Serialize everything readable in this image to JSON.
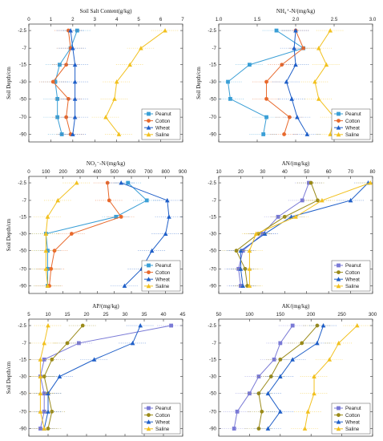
{
  "colors": {
    "Peanut": "#3a9fd6",
    "Cotton": "#e8692c",
    "Wheat": "#1f5fc8",
    "Saline": "#f2c11f",
    "Peanut2": "#7a7ad6",
    "Cotton2": "#9a8a18"
  },
  "chart_data": [
    {
      "type": "line",
      "panel": "a",
      "title": "Soil Salt Content(g/kg)",
      "ylabel": "Soil Depth/cm",
      "xlim": [
        0,
        7
      ],
      "xticks": [
        "0",
        "1",
        "2",
        "3",
        "4",
        "5",
        "6",
        "7"
      ],
      "categories": [
        "2.5",
        "7",
        "15",
        "30",
        "50",
        "70",
        "90"
      ],
      "legend": "bottom-right",
      "series": [
        {
          "name": "Peanut",
          "values": [
            2.2,
            1.9,
            1.4,
            1.2,
            1.3,
            1.3,
            1.5
          ]
        },
        {
          "name": "Cotton",
          "values": [
            1.8,
            1.9,
            1.7,
            1.1,
            1.8,
            1.7,
            1.9
          ]
        },
        {
          "name": "Wheat",
          "values": [
            1.9,
            2.0,
            2.1,
            2.1,
            2.1,
            2.1,
            2.0
          ]
        },
        {
          "name": "Saline",
          "values": [
            6.2,
            5.1,
            4.6,
            4.0,
            3.9,
            3.5,
            4.1
          ]
        }
      ]
    },
    {
      "type": "line",
      "panel": "b",
      "title": "NH₄⁺-N/(mg/kg)",
      "ylabel": "Soil Depth/cm",
      "xlim": [
        1,
        3
      ],
      "xticks": [
        "1.0",
        "1.5",
        "2.0",
        "2.5",
        "3.0"
      ],
      "categories": [
        "2.5",
        "7",
        "15",
        "30",
        "50",
        "70",
        "90"
      ],
      "legend": "bottom-right",
      "series": [
        {
          "name": "Peanut",
          "values": [
            1.75,
            2.1,
            1.4,
            1.12,
            1.15,
            1.62,
            1.58
          ]
        },
        {
          "name": "Cotton",
          "values": [
            2.0,
            2.1,
            1.82,
            1.62,
            1.62,
            1.92,
            1.85
          ]
        },
        {
          "name": "Wheat",
          "values": [
            2.0,
            1.98,
            2.0,
            1.88,
            1.95,
            2.02,
            2.15
          ]
        },
        {
          "name": "Saline",
          "values": [
            2.45,
            2.3,
            2.4,
            2.25,
            2.3,
            2.5,
            2.45
          ]
        }
      ]
    },
    {
      "type": "line",
      "panel": "c",
      "title": "NO₃⁻-N/(mg/kg)",
      "ylabel": "Soil Depth/cm",
      "xlim": [
        0,
        900
      ],
      "xticks": [
        "0",
        "100",
        "200",
        "300",
        "400",
        "500",
        "600",
        "700",
        "800",
        "900"
      ],
      "categories": [
        "2.5",
        "7",
        "15",
        "30",
        "50",
        "70",
        "90"
      ],
      "legend": "bottom-right",
      "series": [
        {
          "name": "Peanut",
          "values": [
            580,
            690,
            510,
            100,
            110,
            110,
            110
          ]
        },
        {
          "name": "Cotton",
          "values": [
            460,
            470,
            540,
            250,
            150,
            130,
            120
          ]
        },
        {
          "name": "Wheat",
          "values": [
            540,
            810,
            820,
            800,
            720,
            660,
            560
          ]
        },
        {
          "name": "Saline",
          "values": [
            280,
            170,
            110,
            100,
            100,
            100,
            110
          ]
        }
      ]
    },
    {
      "type": "line",
      "panel": "d",
      "title": "AN/(mg/kg)",
      "ylabel": "",
      "xlim": [
        10,
        80
      ],
      "xticks": [
        "10",
        "20",
        "30",
        "40",
        "50",
        "60",
        "70",
        "80"
      ],
      "categories": [
        "2.5",
        "7",
        "15",
        "30",
        "50",
        "70",
        "90"
      ],
      "legend": "bottom-right",
      "series": [
        {
          "name": "Peanut",
          "values": [
            51,
            48,
            37,
            30,
            21,
            19,
            20
          ]
        },
        {
          "name": "Cotton",
          "values": [
            52,
            55,
            40,
            28,
            18,
            22,
            23
          ]
        },
        {
          "name": "Wheat",
          "values": [
            78,
            70,
            43,
            31,
            20,
            20,
            21
          ]
        },
        {
          "name": "Saline",
          "values": [
            79,
            57,
            45,
            27,
            24,
            24,
            24
          ]
        }
      ]
    },
    {
      "type": "line",
      "panel": "e",
      "title": "AP/(mg/kg)",
      "ylabel": "Soil Depth/cm",
      "xlim": [
        5,
        45
      ],
      "xticks": [
        "5",
        "10",
        "15",
        "20",
        "25",
        "30",
        "35",
        "40",
        "45"
      ],
      "categories": [
        "2.5",
        "7",
        "15",
        "30",
        "50",
        "70",
        "90"
      ],
      "legend": "bottom-right",
      "series": [
        {
          "name": "Peanut",
          "values": [
            42,
            18,
            9,
            8,
            9,
            9,
            8
          ]
        },
        {
          "name": "Cotton",
          "values": [
            19,
            15,
            11,
            9,
            10,
            11,
            10
          ]
        },
        {
          "name": "Wheat",
          "values": [
            34,
            32,
            22,
            13,
            10,
            10,
            9
          ]
        },
        {
          "name": "Saline",
          "values": [
            10,
            9,
            8,
            8,
            8,
            8,
            9
          ]
        }
      ]
    },
    {
      "type": "line",
      "panel": "f",
      "title": "AK/(mg/kg)",
      "ylabel": "",
      "xlim": [
        50,
        300
      ],
      "xticks": [
        "50",
        "100",
        "150",
        "200",
        "250",
        "300"
      ],
      "categories": [
        "2.5",
        "7",
        "15",
        "30",
        "50",
        "70",
        "90"
      ],
      "legend": "bottom-right",
      "series": [
        {
          "name": "Peanut",
          "values": [
            170,
            150,
            140,
            115,
            100,
            80,
            75
          ]
        },
        {
          "name": "Cotton",
          "values": [
            210,
            185,
            150,
            135,
            115,
            120,
            115
          ]
        },
        {
          "name": "Wheat",
          "values": [
            220,
            210,
            170,
            150,
            130,
            150,
            130
          ]
        },
        {
          "name": "Saline",
          "values": [
            275,
            245,
            230,
            205,
            205,
            195,
            190
          ]
        }
      ]
    }
  ]
}
